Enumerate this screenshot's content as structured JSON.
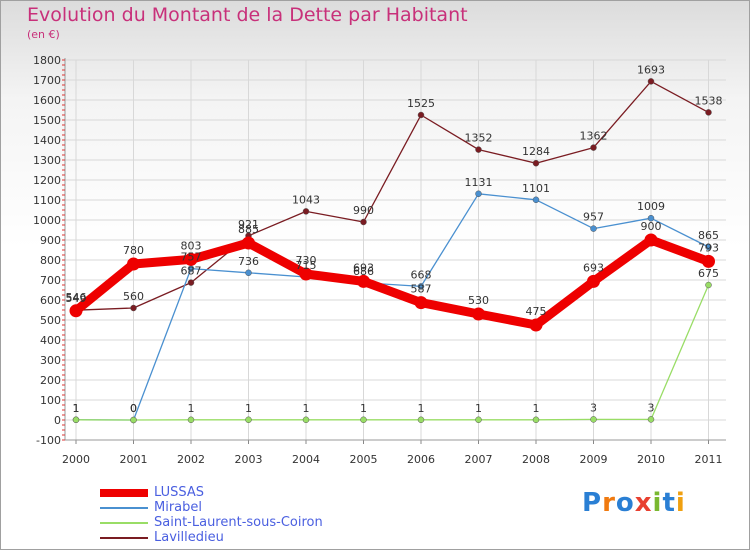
{
  "title": "Evolution du Montant de la Dette par Habitant",
  "subtitle": "(en €)",
  "logo_text": "Proxiti",
  "chart_data": {
    "type": "line",
    "title": "Evolution du Montant de la Dette par Habitant",
    "subtitle": "(en €)",
    "categories": [
      "2000",
      "2001",
      "2002",
      "2003",
      "2004",
      "2005",
      "2006",
      "2007",
      "2008",
      "2009",
      "2010",
      "2011"
    ],
    "ylim": [
      -100,
      1800
    ],
    "yticks": [
      -100,
      0,
      100,
      200,
      300,
      400,
      500,
      600,
      700,
      800,
      900,
      1000,
      1100,
      1200,
      1300,
      1400,
      1500,
      1600,
      1700,
      1800
    ],
    "grid": true,
    "legend_position": "bottom-left",
    "series": [
      {
        "name": "LUSSAS",
        "color": "#ee0000",
        "values": [
          546,
          780,
          803,
          885,
          730,
          693,
          587,
          530,
          475,
          693,
          900,
          793
        ]
      },
      {
        "name": "Mirabel",
        "color": "#4a90d0",
        "values": [
          1,
          0,
          757,
          736,
          715,
          686,
          668,
          1131,
          1101,
          957,
          1009,
          865
        ]
      },
      {
        "name": "Saint-Laurent-sous-Coiron",
        "color": "#99dd66",
        "values": [
          1,
          0,
          1,
          1,
          1,
          1,
          1,
          1,
          1,
          3,
          3,
          675
        ]
      },
      {
        "name": "Lavilledieu",
        "color": "#7a1c22",
        "values": [
          549,
          560,
          687,
          921,
          1043,
          990,
          1525,
          1352,
          1284,
          1362,
          1693,
          1538
        ]
      }
    ]
  }
}
